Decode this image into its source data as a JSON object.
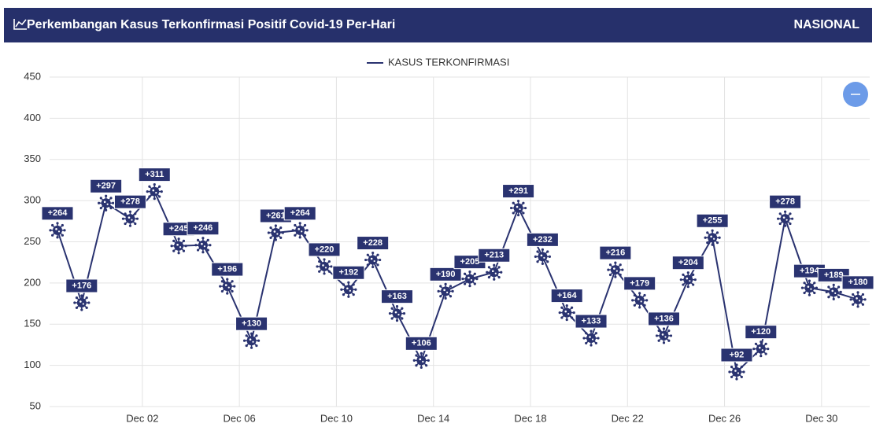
{
  "header": {
    "title": "Perkembangan Kasus Terkonfirmasi Positif Covid-19 Per-Hari",
    "scope": "NASIONAL"
  },
  "chart_data": {
    "type": "line",
    "categories": [
      null,
      null,
      null,
      null,
      "Dec 02",
      null,
      null,
      null,
      "Dec 06",
      null,
      null,
      null,
      "Dec 10",
      null,
      null,
      null,
      "Dec 14",
      null,
      null,
      null,
      "Dec 18",
      null,
      null,
      null,
      "Dec 22",
      null,
      null,
      null,
      "Dec 26",
      null,
      null,
      null,
      "Dec 30",
      null
    ],
    "series": [
      {
        "name": "KASUS TERKONFIRMASI",
        "color": "#2a3370",
        "values": [
          264,
          176,
          297,
          278,
          311,
          245,
          246,
          196,
          130,
          261,
          264,
          220,
          192,
          228,
          163,
          106,
          190,
          205,
          213,
          291,
          232,
          164,
          133,
          216,
          179,
          136,
          204,
          255,
          92,
          120,
          278,
          194,
          189,
          180
        ],
        "value_labels": [
          "+264",
          "+176",
          "+297",
          "+278",
          "+311",
          "+245",
          "+246",
          "+196",
          "+130",
          "+261",
          "+264",
          "+220",
          "+192",
          "+228",
          "+163",
          "+106",
          "+190",
          "+205",
          "+213",
          "+291",
          "+232",
          "+164",
          "+133",
          "+216",
          "+179",
          "+136",
          "+204",
          "+255",
          "+92",
          "+120",
          "+278",
          "+194",
          "+189",
          "+180"
        ]
      }
    ],
    "ylim": [
      50,
      450
    ],
    "yticks": [
      50,
      100,
      150,
      200,
      250,
      300,
      350,
      400,
      450
    ],
    "grid": true,
    "legend": "top"
  }
}
